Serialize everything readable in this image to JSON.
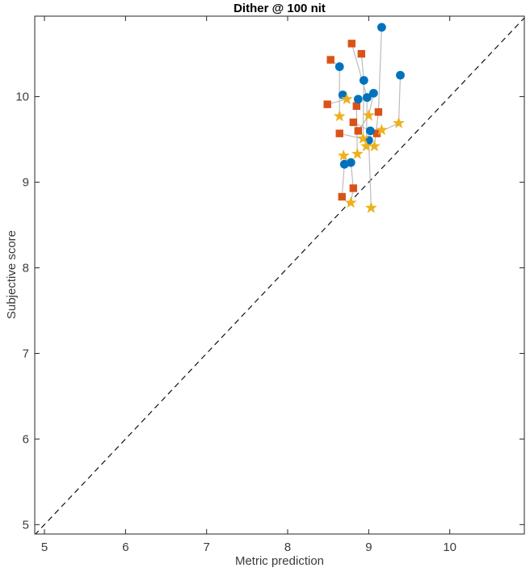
{
  "chart_data": {
    "type": "scatter",
    "title": "Dither @ 100 nit",
    "xlabel": "Metric prediction",
    "ylabel": "Subjective score",
    "xlim": [
      4.88,
      10.92
    ],
    "ylim": [
      4.89,
      10.94
    ],
    "xticks": [
      5,
      6,
      7,
      8,
      9,
      10
    ],
    "yticks": [
      5,
      6,
      7,
      8,
      9,
      10
    ],
    "grid": false,
    "box": true,
    "legend": null,
    "identity_line": {
      "equation": "y = x",
      "style": "dashed",
      "color": "#111111"
    },
    "series": [
      {
        "name": "blue-circles",
        "marker": "circle",
        "color": "#0072BD",
        "points": [
          [
            9.16,
            10.81
          ],
          [
            8.64,
            10.35
          ],
          [
            9.39,
            10.25
          ],
          [
            8.94,
            10.19
          ],
          [
            8.68,
            10.02
          ],
          [
            8.87,
            9.97
          ],
          [
            8.98,
            9.99
          ],
          [
            9.06,
            10.04
          ],
          [
            9.02,
            9.6
          ],
          [
            9.0,
            9.49
          ],
          [
            8.7,
            9.21
          ],
          [
            8.78,
            9.23
          ]
        ]
      },
      {
        "name": "orange-squares",
        "marker": "square",
        "color": "#D95319",
        "points": [
          [
            8.79,
            10.62
          ],
          [
            8.53,
            10.43
          ],
          [
            8.91,
            10.5
          ],
          [
            8.49,
            9.91
          ],
          [
            8.85,
            9.89
          ],
          [
            9.12,
            9.82
          ],
          [
            8.81,
            9.7
          ],
          [
            8.64,
            9.57
          ],
          [
            8.87,
            9.6
          ],
          [
            9.1,
            9.57
          ],
          [
            8.81,
            8.93
          ],
          [
            8.67,
            8.83
          ]
        ]
      },
      {
        "name": "yellow-stars",
        "marker": "star",
        "color": "#EDB120",
        "points": [
          [
            8.73,
            9.97
          ],
          [
            8.64,
            9.77
          ],
          [
            9.0,
            9.78
          ],
          [
            9.37,
            9.69
          ],
          [
            9.16,
            9.61
          ],
          [
            8.93,
            9.51
          ],
          [
            8.97,
            9.42
          ],
          [
            9.07,
            9.42
          ],
          [
            8.86,
            9.33
          ],
          [
            8.69,
            9.31
          ],
          [
            8.78,
            8.76
          ],
          [
            9.03,
            8.7
          ]
        ]
      }
    ],
    "connector_groups": [
      [
        [
          9.16,
          10.81
        ],
        [
          9.12,
          9.82
        ],
        [
          9.07,
          9.42
        ]
      ],
      [
        [
          9.39,
          10.25
        ],
        [
          9.37,
          9.69
        ],
        [
          9.1,
          9.57
        ]
      ],
      [
        [
          8.53,
          10.43
        ],
        [
          8.64,
          10.35
        ],
        [
          8.64,
          9.77
        ]
      ],
      [
        [
          8.91,
          10.5
        ],
        [
          8.94,
          10.19
        ],
        [
          8.93,
          9.51
        ]
      ],
      [
        [
          8.68,
          10.02
        ],
        [
          8.73,
          9.97
        ],
        [
          8.49,
          9.91
        ]
      ],
      [
        [
          8.87,
          9.97
        ],
        [
          8.85,
          9.89
        ],
        [
          8.86,
          9.33
        ]
      ],
      [
        [
          8.79,
          10.62
        ],
        [
          8.98,
          9.99
        ],
        [
          8.97,
          9.42
        ]
      ],
      [
        [
          9.06,
          10.04
        ],
        [
          9.0,
          9.78
        ],
        [
          8.87,
          9.6
        ]
      ],
      [
        [
          8.81,
          9.7
        ],
        [
          9.02,
          9.6
        ],
        [
          9.16,
          9.61
        ]
      ],
      [
        [
          8.64,
          9.57
        ],
        [
          9.0,
          9.49
        ],
        [
          9.03,
          8.7
        ]
      ],
      [
        [
          8.69,
          9.31
        ],
        [
          8.7,
          9.21
        ],
        [
          8.67,
          8.83
        ]
      ],
      [
        [
          8.78,
          9.23
        ],
        [
          8.81,
          8.93
        ],
        [
          8.78,
          8.76
        ]
      ]
    ],
    "colors": {
      "axis": "#262626",
      "text": "#3b3b3b",
      "connector": "#bcbcbc",
      "identity": "#111111",
      "background": "#ffffff"
    }
  }
}
